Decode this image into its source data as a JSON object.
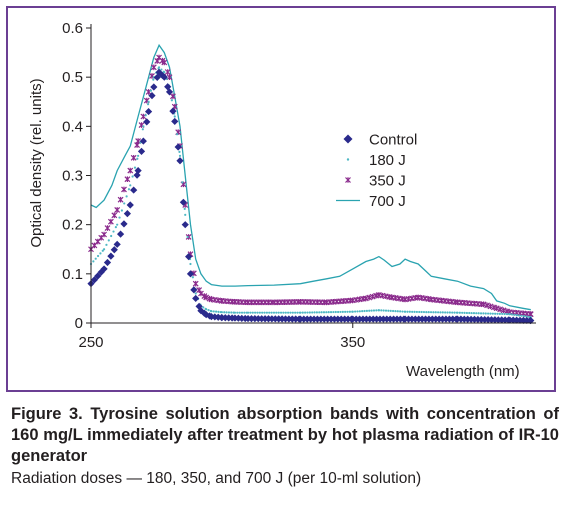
{
  "figure": {
    "title": "Figure 3. Tyrosine solution absorption bands with concentration of 160 mg/L immediately after treatment by hot plasma radiation of IR-10 generator",
    "subtitle": "Radiation doses — 180, 350, and 700 J (per 10-ml solution)"
  },
  "colors": {
    "frame": "#6b3f93",
    "control": "#2a2a8c",
    "j180": "#4fb8c4",
    "j350": "#8a2a8c",
    "j700": "#2aa3b0"
  },
  "chart_data": {
    "type": "line",
    "xlabel": "Wavelength (nm)",
    "ylabel": "Optical density (rel. units)",
    "xlim": [
      250,
      420
    ],
    "ylim": [
      0,
      0.6
    ],
    "xticks": [
      "250",
      "350"
    ],
    "xtick_values": [
      250,
      350
    ],
    "yticks": [
      "0",
      "0.1",
      "0.2",
      "0.3",
      "0.4",
      "0.5",
      "0.6"
    ],
    "ytick_values": [
      0,
      0.1,
      0.2,
      0.3,
      0.4,
      0.5,
      0.6
    ],
    "legend_position": "center-right",
    "series": [
      {
        "name": "Control",
        "marker": "diamond",
        "color": "#2a2a8c",
        "x": [
          250,
          255,
          260,
          265,
          268,
          270,
          272,
          274,
          276,
          278,
          280,
          282,
          284,
          286,
          288,
          290,
          292,
          294,
          296,
          300,
          305,
          310,
          330,
          350,
          370,
          390,
          410,
          418
        ],
        "y": [
          0.08,
          0.11,
          0.16,
          0.24,
          0.31,
          0.37,
          0.43,
          0.48,
          0.51,
          0.5,
          0.47,
          0.41,
          0.33,
          0.2,
          0.1,
          0.05,
          0.025,
          0.017,
          0.013,
          0.011,
          0.01,
          0.009,
          0.008,
          0.008,
          0.008,
          0.008,
          0.006,
          0.005
        ]
      },
      {
        "name": "180 J",
        "marker": "dot",
        "color": "#4fb8c4",
        "x": [
          250,
          255,
          260,
          265,
          268,
          270,
          272,
          274,
          276,
          278,
          280,
          282,
          284,
          286,
          288,
          290,
          292,
          294,
          296,
          300,
          305,
          310,
          330,
          350,
          360,
          370,
          390,
          410,
          418
        ],
        "y": [
          0.12,
          0.15,
          0.2,
          0.28,
          0.34,
          0.4,
          0.45,
          0.5,
          0.52,
          0.51,
          0.48,
          0.42,
          0.34,
          0.22,
          0.12,
          0.06,
          0.035,
          0.028,
          0.024,
          0.022,
          0.021,
          0.021,
          0.021,
          0.023,
          0.026,
          0.023,
          0.021,
          0.018,
          0.012
        ]
      },
      {
        "name": "350 J",
        "marker": "x",
        "color": "#8a2a8c",
        "x": [
          250,
          255,
          260,
          265,
          268,
          270,
          272,
          274,
          276,
          278,
          280,
          282,
          284,
          286,
          288,
          290,
          292,
          294,
          296,
          300,
          305,
          310,
          320,
          330,
          340,
          350,
          355,
          360,
          365,
          370,
          375,
          380,
          390,
          400,
          405,
          410,
          418
        ],
        "y": [
          0.15,
          0.18,
          0.23,
          0.31,
          0.37,
          0.42,
          0.47,
          0.52,
          0.54,
          0.53,
          0.5,
          0.44,
          0.36,
          0.24,
          0.14,
          0.08,
          0.06,
          0.052,
          0.048,
          0.045,
          0.043,
          0.042,
          0.042,
          0.043,
          0.042,
          0.046,
          0.05,
          0.057,
          0.052,
          0.048,
          0.052,
          0.048,
          0.042,
          0.038,
          0.03,
          0.022,
          0.018
        ]
      },
      {
        "name": "700 J",
        "marker": "line",
        "color": "#2aa3b0",
        "x": [
          250,
          252,
          255,
          258,
          260,
          263,
          265,
          268,
          270,
          272,
          274,
          276,
          278,
          280,
          282,
          284,
          286,
          288,
          290,
          292,
          294,
          296,
          300,
          305,
          310,
          320,
          330,
          335,
          340,
          345,
          350,
          355,
          358,
          360,
          362,
          365,
          368,
          370,
          372,
          375,
          378,
          380,
          385,
          390,
          395,
          400,
          403,
          405,
          408,
          410,
          415,
          418
        ],
        "y": [
          0.24,
          0.235,
          0.25,
          0.28,
          0.31,
          0.34,
          0.36,
          0.42,
          0.46,
          0.5,
          0.54,
          0.565,
          0.55,
          0.52,
          0.46,
          0.4,
          0.3,
          0.2,
          0.13,
          0.1,
          0.085,
          0.078,
          0.075,
          0.075,
          0.076,
          0.077,
          0.08,
          0.085,
          0.09,
          0.095,
          0.11,
          0.125,
          0.13,
          0.135,
          0.128,
          0.115,
          0.12,
          0.13,
          0.125,
          0.12,
          0.105,
          0.095,
          0.09,
          0.085,
          0.075,
          0.07,
          0.06,
          0.045,
          0.04,
          0.035,
          0.03,
          0.027
        ]
      }
    ]
  }
}
